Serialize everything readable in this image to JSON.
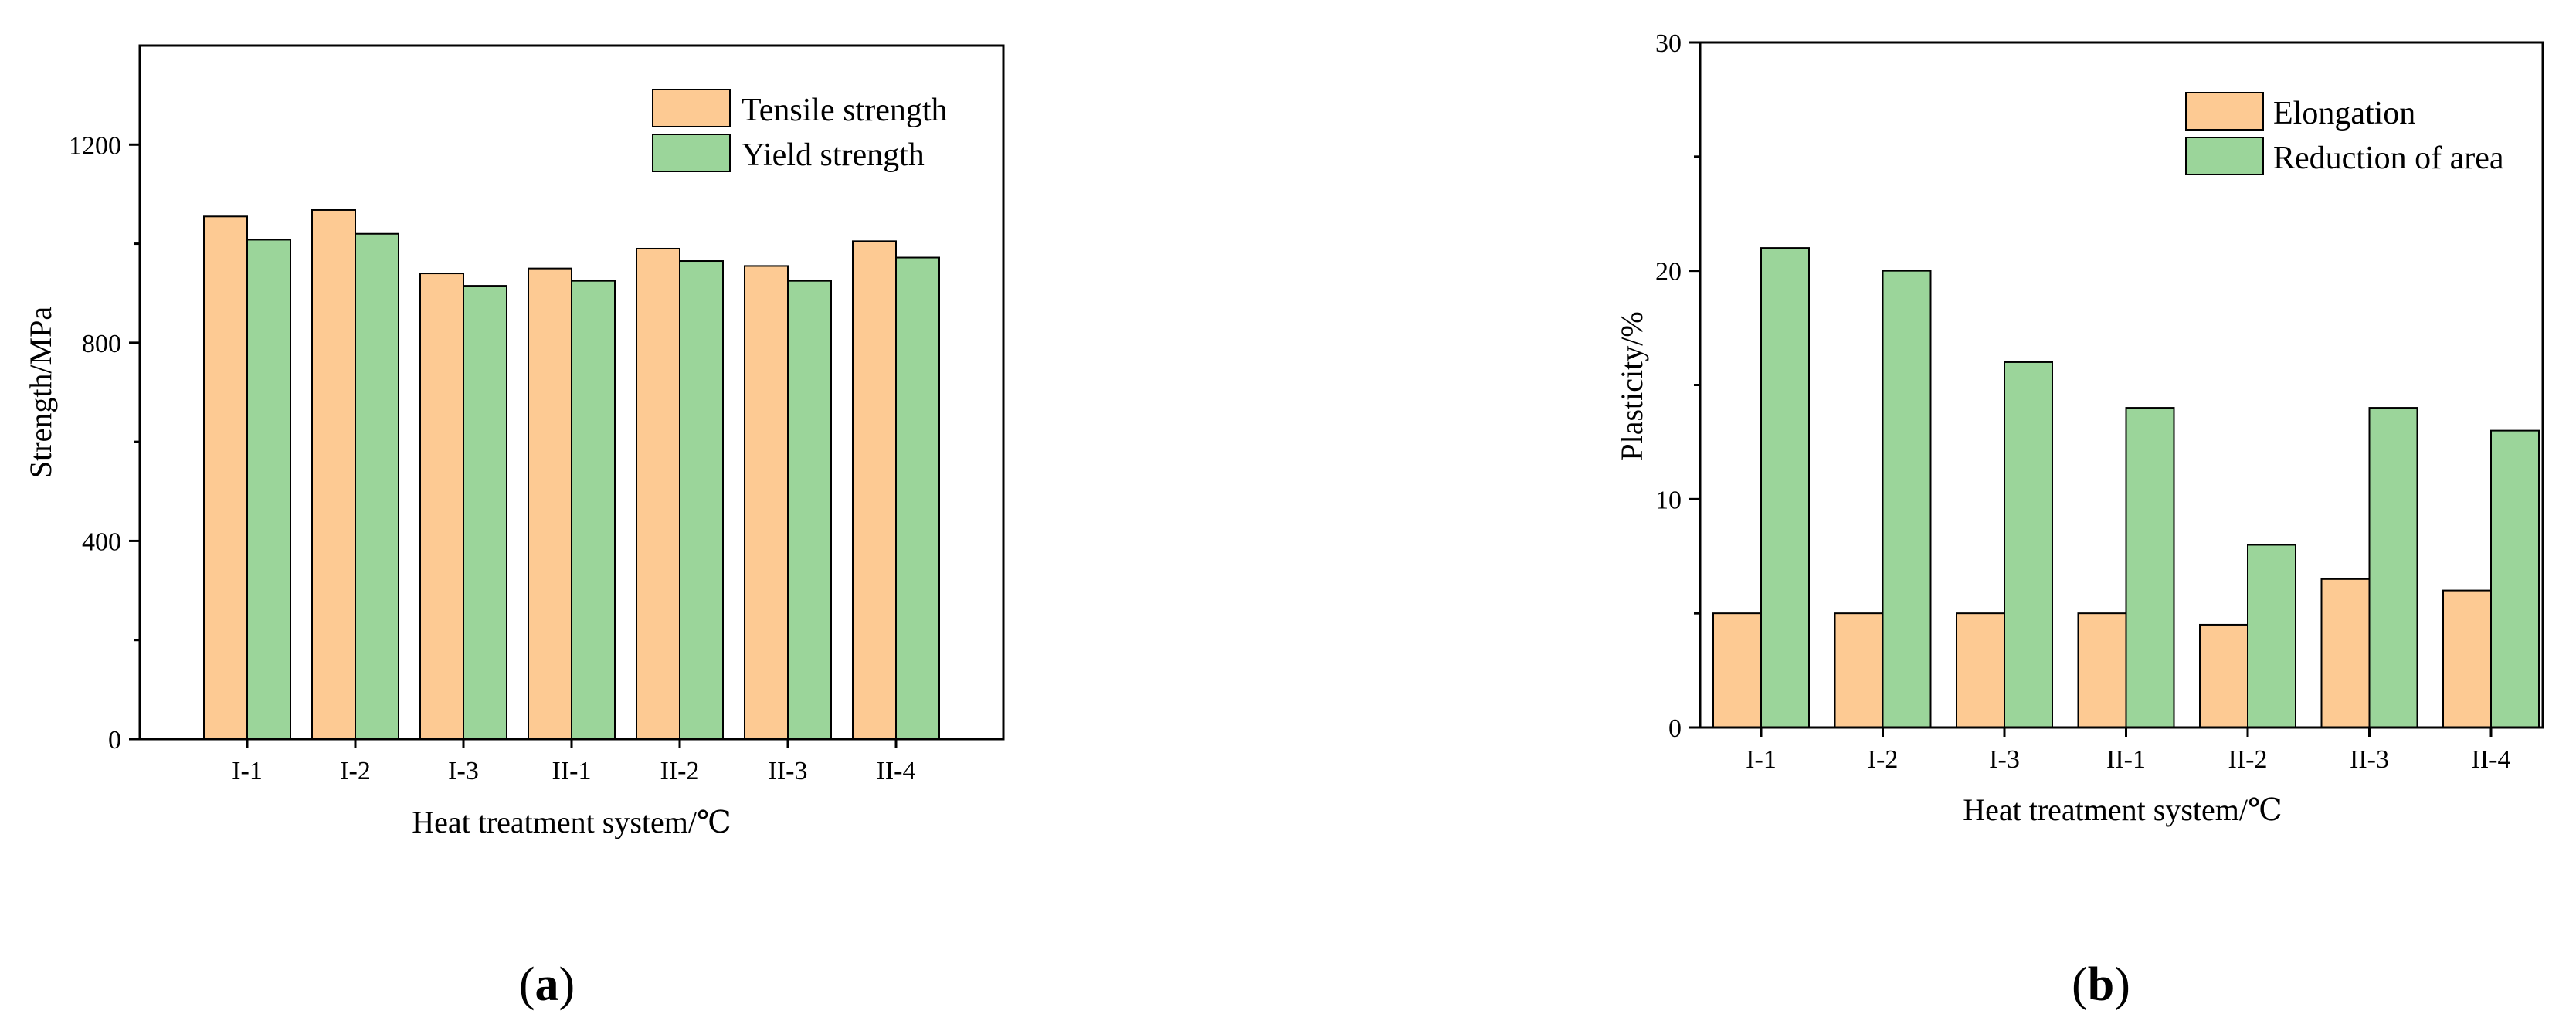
{
  "figure": {
    "panel_a_label": {
      "open": "(",
      "letter": "a",
      "close": ")"
    },
    "panel_b_label": {
      "open": "(",
      "letter": "b",
      "close": ")"
    }
  },
  "colors": {
    "orange": "#fdca93",
    "green": "#9bd59a",
    "stroke": "#000000"
  },
  "chart_data": [
    {
      "type": "bar",
      "title": "",
      "xlabel": "Heat treatment system/℃",
      "ylabel": "Strength/MPa",
      "ylim": [
        0,
        1400
      ],
      "yticks": [
        0,
        400,
        800,
        1200
      ],
      "yticks_minor": [
        200,
        600,
        1000
      ],
      "categories": [
        "I-1",
        "I-2",
        "I-3",
        "II-1",
        "II-2",
        "II-3",
        "II-4"
      ],
      "series": [
        {
          "name": "Tensile strength",
          "color": "#fdca93",
          "values": [
            1055,
            1068,
            940,
            950,
            990,
            955,
            1005
          ]
        },
        {
          "name": "Yield strength",
          "color": "#9bd59a",
          "values": [
            1008,
            1020,
            915,
            925,
            965,
            925,
            972
          ]
        }
      ],
      "legend_position": "top-right",
      "grid": false
    },
    {
      "type": "bar",
      "title": "",
      "xlabel": "Heat treatment system/℃",
      "ylabel": "Plasticity/%",
      "ylim": [
        0,
        30
      ],
      "yticks": [
        0,
        10,
        20,
        30
      ],
      "yticks_minor": [
        5,
        15,
        25
      ],
      "categories": [
        "I-1",
        "I-2",
        "I-3",
        "II-1",
        "II-2",
        "II-3",
        "II-4"
      ],
      "series": [
        {
          "name": "Elongation",
          "color": "#fdca93",
          "values": [
            5,
            5,
            5,
            5,
            4.5,
            6.5,
            6
          ]
        },
        {
          "name": "Reduction of area",
          "color": "#9bd59a",
          "values": [
            21,
            20,
            16,
            14,
            8,
            14,
            13
          ]
        }
      ],
      "legend_position": "top-right",
      "grid": false
    }
  ]
}
